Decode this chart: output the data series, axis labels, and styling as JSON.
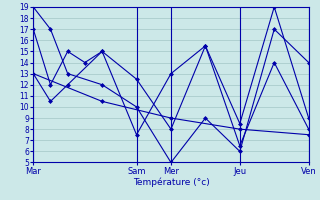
{
  "bg_color": "#cce8e8",
  "grid_color": "#aacccc",
  "line_color": "#0000aa",
  "ylim": [
    5,
    19
  ],
  "yticks": [
    5,
    6,
    7,
    8,
    9,
    10,
    11,
    12,
    13,
    14,
    15,
    16,
    17,
    18,
    19
  ],
  "xlabel": "Température (°c)",
  "xlabel_color": "#0000aa",
  "x_tick_labels": [
    "Mar",
    "Sam",
    "Mer",
    "Jeu",
    "Ven"
  ],
  "x_tick_positions": [
    0,
    12,
    16,
    24,
    32
  ],
  "xlim": [
    0,
    32
  ],
  "x_dividers": [
    0,
    12,
    16,
    24,
    32
  ],
  "series": [
    {
      "x": [
        0,
        2,
        4,
        8,
        12,
        16,
        20,
        24,
        28,
        32
      ],
      "y": [
        19,
        17,
        13,
        12,
        10,
        5,
        9,
        6,
        17,
        14
      ]
    },
    {
      "x": [
        0,
        2,
        4,
        8,
        12,
        16,
        20,
        24,
        28,
        32
      ],
      "y": [
        13,
        10.5,
        12,
        15,
        12.5,
        8,
        15.5,
        8.5,
        19,
        9
      ]
    },
    {
      "x": [
        0,
        2,
        4,
        6,
        8,
        12,
        16,
        20,
        24,
        28,
        32
      ],
      "y": [
        17,
        12,
        15,
        14,
        15,
        7.5,
        13,
        15.5,
        6.5,
        14,
        8
      ]
    },
    {
      "x": [
        0,
        8,
        16,
        24,
        32
      ],
      "y": [
        13,
        10.5,
        9,
        8,
        7.5
      ]
    }
  ]
}
